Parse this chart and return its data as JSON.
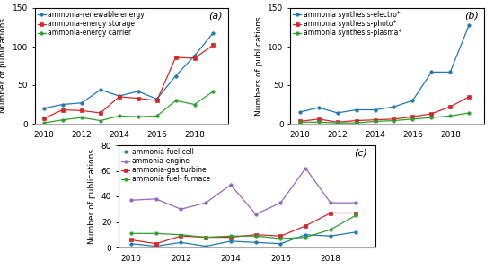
{
  "years": [
    2010,
    2011,
    2012,
    2013,
    2014,
    2015,
    2016,
    2017,
    2018,
    2019
  ],
  "panel_a": {
    "label": "(a)",
    "ylabel": "Number of publications",
    "ylim": [
      0,
      150
    ],
    "yticks": [
      0,
      50,
      100,
      150
    ],
    "series": [
      {
        "label": "ammonia-renewable energy",
        "color": "#1f77b4",
        "marker": "o",
        "data": [
          20,
          25,
          27,
          44,
          36,
          42,
          32,
          62,
          88,
          118
        ]
      },
      {
        "label": "ammonia-energy storage",
        "color": "#d62728",
        "marker": "s",
        "data": [
          7,
          18,
          17,
          14,
          35,
          33,
          30,
          86,
          85,
          102
        ]
      },
      {
        "label": "ammonia-energy carrier",
        "color": "#2ca02c",
        "marker": "o",
        "data": [
          1,
          5,
          8,
          4,
          10,
          9,
          10,
          30,
          25,
          42
        ]
      }
    ]
  },
  "panel_b": {
    "label": "(b)",
    "ylabel": "Numbers of publications",
    "ylim": [
      0,
      150
    ],
    "yticks": [
      0,
      50,
      100,
      150
    ],
    "series": [
      {
        "label": "ammonia synthesis-electro*",
        "color": "#1f77b4",
        "marker": "o",
        "data": [
          15,
          21,
          14,
          18,
          18,
          22,
          30,
          67,
          67,
          128
        ]
      },
      {
        "label": "ammonia synthesis-photo*",
        "color": "#d62728",
        "marker": "s",
        "data": [
          3,
          6,
          2,
          4,
          5,
          6,
          9,
          13,
          22,
          35
        ]
      },
      {
        "label": "ammonia synthesis-plasma*",
        "color": "#2ca02c",
        "marker": "o",
        "data": [
          2,
          2,
          1,
          1,
          3,
          4,
          6,
          8,
          10,
          14
        ]
      }
    ]
  },
  "panel_c": {
    "label": "(c)",
    "ylabel": "Number of publications",
    "ylim": [
      0,
      80
    ],
    "yticks": [
      0,
      20,
      40,
      60,
      80
    ],
    "series": [
      {
        "label": "ammonia-fuel cell",
        "color": "#1f77b4",
        "marker": "o",
        "data": [
          3,
          1,
          4,
          1,
          5,
          4,
          3,
          10,
          9,
          12
        ]
      },
      {
        "label": "ammonia-engine",
        "color": "#9467bd",
        "marker": "o",
        "data": [
          37,
          38,
          30,
          35,
          49,
          26,
          35,
          62,
          35,
          35
        ]
      },
      {
        "label": "ammonia-gas turbine",
        "color": "#d62728",
        "marker": "s",
        "data": [
          6,
          3,
          9,
          8,
          8,
          10,
          9,
          17,
          27,
          27
        ]
      },
      {
        "label": "ammonia fuel- furnace",
        "color": "#2ca02c",
        "marker": "o",
        "data": [
          11,
          11,
          10,
          8,
          9,
          9,
          7,
          8,
          14,
          25
        ]
      }
    ]
  },
  "xtick_years": [
    2010,
    2012,
    2014,
    2016,
    2018
  ],
  "fontsize_label": 6.5,
  "fontsize_legend": 5.5,
  "fontsize_tick": 6.5,
  "fontsize_panel": 8
}
